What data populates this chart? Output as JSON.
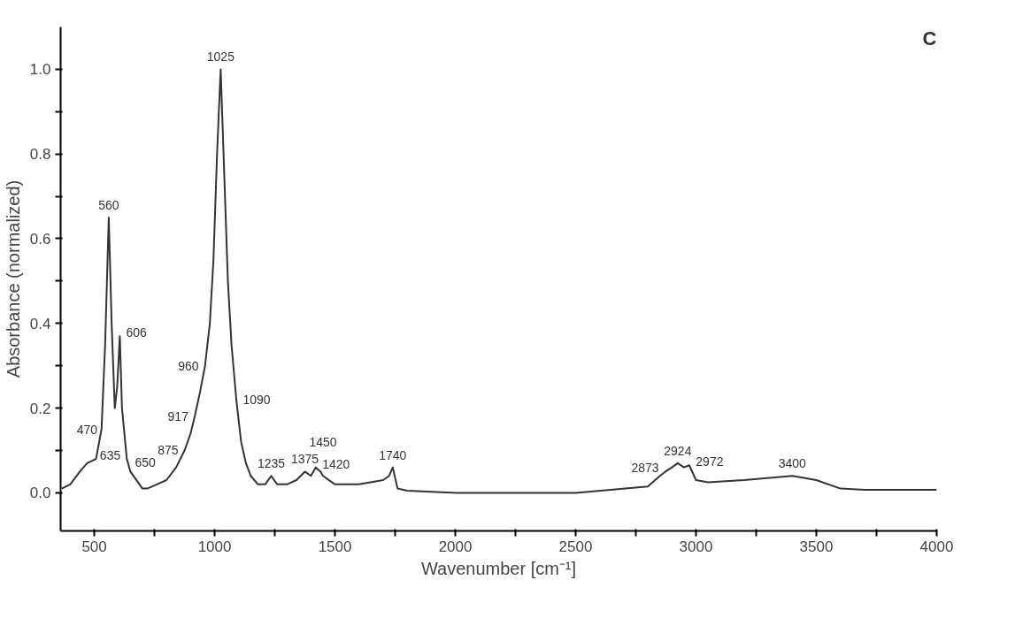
{
  "chart_data": {
    "type": "line",
    "xlabel": "Wavenumber [cm⁻¹]",
    "ylabel": "Absorbance (normalized)",
    "xlim": [
      360,
      4000
    ],
    "ylim": [
      -0.09,
      1.1
    ],
    "xticks": [
      500,
      {
        "value": 750,
        "label": null
      },
      1000,
      {
        "value": 1250,
        "label": null
      },
      1500,
      {
        "value": 1750,
        "label": null
      },
      2000,
      {
        "value": 2250,
        "label": null
      },
      2500,
      {
        "value": 2750,
        "label": null
      },
      3000,
      {
        "value": 3250,
        "label": null
      },
      3500,
      {
        "value": 3750,
        "label": null
      },
      4000
    ],
    "yticks": [
      {
        "value": 0.0,
        "label": "0.0"
      },
      {
        "value": 0.1,
        "label": null
      },
      {
        "value": 0.2,
        "label": "0.2"
      },
      {
        "value": 0.3,
        "label": null
      },
      {
        "value": 0.4,
        "label": "0.4"
      },
      {
        "value": 0.5,
        "label": null
      },
      {
        "value": 0.6,
        "label": "0.6"
      },
      {
        "value": 0.7,
        "label": null
      },
      {
        "value": 0.8,
        "label": "0.8"
      },
      {
        "value": 0.9,
        "label": null
      },
      {
        "value": 1.0,
        "label": "1.0"
      }
    ],
    "grid": false,
    "marker": "none",
    "line_style": "solid",
    "series": [
      {
        "color": "#333333",
        "x": [
          365,
          400,
          440,
          470,
          507,
          530,
          545,
          560,
          572,
          585,
          595,
          606,
          615,
          635,
          650,
          700,
          720,
          760,
          800,
          840,
          875,
          900,
          917,
          940,
          960,
          980,
          995,
          1010,
          1025,
          1040,
          1055,
          1070,
          1090,
          1110,
          1130,
          1150,
          1180,
          1210,
          1235,
          1260,
          1300,
          1340,
          1375,
          1400,
          1420,
          1440,
          1450,
          1500,
          1600,
          1700,
          1725,
          1740,
          1760,
          1800,
          2000,
          2500,
          2800,
          2850,
          2873,
          2900,
          2924,
          2950,
          2972,
          3000,
          3050,
          3200,
          3400,
          3500,
          3600,
          3700,
          4000
        ],
        "values": [
          0.01,
          0.02,
          0.05,
          0.07,
          0.08,
          0.15,
          0.35,
          0.65,
          0.4,
          0.2,
          0.25,
          0.37,
          0.2,
          0.08,
          0.05,
          0.01,
          0.01,
          0.02,
          0.03,
          0.06,
          0.1,
          0.14,
          0.18,
          0.24,
          0.3,
          0.4,
          0.55,
          0.8,
          1.0,
          0.75,
          0.5,
          0.35,
          0.22,
          0.12,
          0.07,
          0.04,
          0.02,
          0.02,
          0.04,
          0.02,
          0.02,
          0.03,
          0.05,
          0.04,
          0.06,
          0.05,
          0.04,
          0.02,
          0.02,
          0.03,
          0.04,
          0.06,
          0.01,
          0.005,
          0.0,
          0.0,
          0.015,
          0.04,
          0.05,
          0.06,
          0.07,
          0.06,
          0.065,
          0.03,
          0.025,
          0.03,
          0.04,
          0.03,
          0.01,
          0.007,
          0.007
        ]
      }
    ],
    "annotations": [
      {
        "text": "470",
        "x": 470,
        "y": 0.07
      },
      {
        "text": "560",
        "x": 560,
        "y": 0.65
      },
      {
        "text": "606",
        "x": 606,
        "y": 0.37
      },
      {
        "text": "650",
        "x": 650,
        "y": 0.05
      },
      {
        "text": "635",
        "x": 635,
        "y": 0.08
      },
      {
        "text": "917",
        "x": 917,
        "y": 0.18
      },
      {
        "text": "875",
        "x": 875,
        "y": 0.1
      },
      {
        "text": "960",
        "x": 960,
        "y": 0.3
      },
      {
        "text": "1025",
        "x": 1025,
        "y": 1.0
      },
      {
        "text": "1090",
        "x": 1090,
        "y": 0.22
      },
      {
        "text": "1375",
        "x": 1375,
        "y": 0.05
      },
      {
        "text": "1420",
        "x": 1420,
        "y": 0.06
      },
      {
        "text": "1235",
        "x": 1235,
        "y": 0.04
      },
      {
        "text": "1450",
        "x": 1450,
        "y": 0.04
      },
      {
        "text": "1740",
        "x": 1740,
        "y": 0.06
      },
      {
        "text": "2924",
        "x": 2924,
        "y": 0.07
      },
      {
        "text": "2873",
        "x": 2873,
        "y": 0.05
      },
      {
        "text": "2972",
        "x": 2972,
        "y": 0.065
      },
      {
        "text": "3400",
        "x": 3400,
        "y": 0.04
      },
      "C"
    ]
  }
}
